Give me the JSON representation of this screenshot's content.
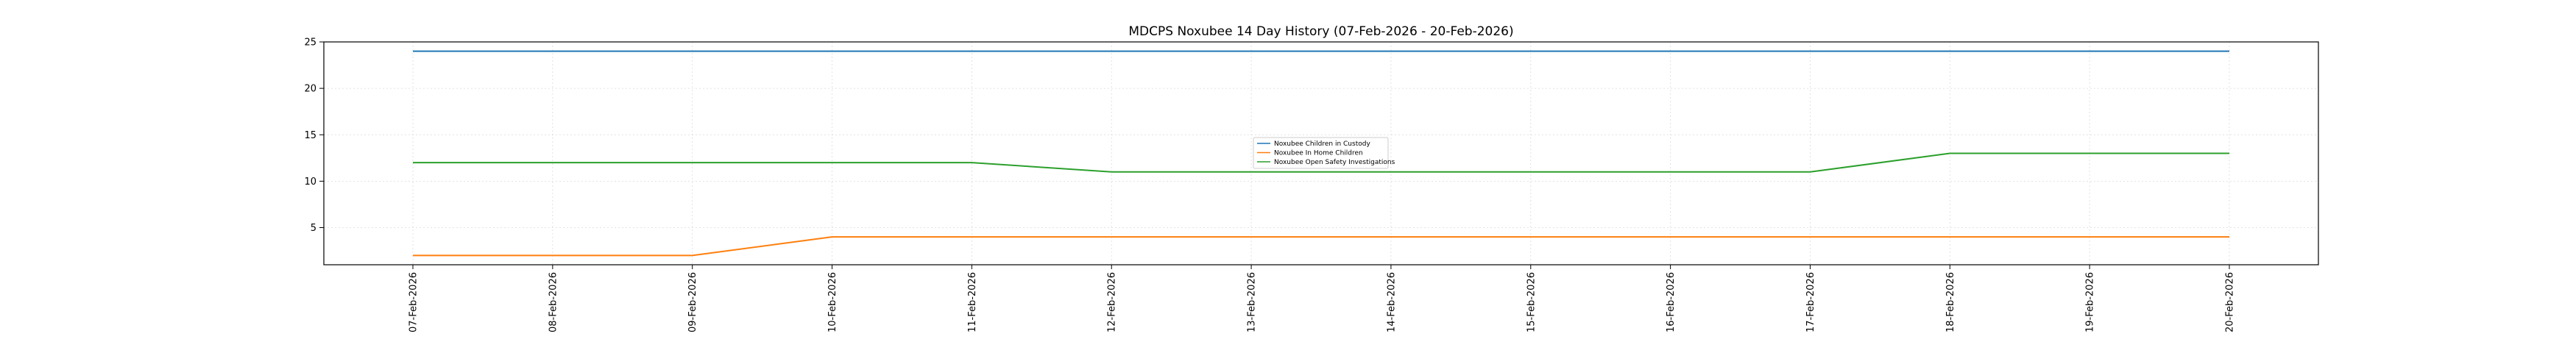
{
  "chart_data": {
    "type": "line",
    "title": "MDCPS Noxubee 14 Day History (07-Feb-2026 - 20-Feb-2026)",
    "xlabel": "",
    "ylabel": "",
    "categories": [
      "07-Feb-2026",
      "08-Feb-2026",
      "09-Feb-2026",
      "10-Feb-2026",
      "11-Feb-2026",
      "12-Feb-2026",
      "13-Feb-2026",
      "14-Feb-2026",
      "15-Feb-2026",
      "16-Feb-2026",
      "17-Feb-2026",
      "18-Feb-2026",
      "19-Feb-2026",
      "20-Feb-2026"
    ],
    "ylim": [
      1,
      25
    ],
    "yticks": [
      5,
      10,
      15,
      20,
      25
    ],
    "grid": true,
    "legend_position": "center",
    "series": [
      {
        "name": "Noxubee Children in Custody",
        "color": "#1f77b4",
        "values": [
          24,
          24,
          24,
          24,
          24,
          24,
          24,
          24,
          24,
          24,
          24,
          24,
          24,
          24
        ]
      },
      {
        "name": "Noxubee In Home Children",
        "color": "#ff7f0e",
        "values": [
          2,
          2,
          2,
          4,
          4,
          4,
          4,
          4,
          4,
          4,
          4,
          4,
          4,
          4
        ]
      },
      {
        "name": "Noxubee Open Safety Investigations",
        "color": "#2ca02c",
        "values": [
          12,
          12,
          12,
          12,
          12,
          11,
          11,
          11,
          11,
          11,
          11,
          13,
          13,
          13
        ]
      }
    ]
  }
}
